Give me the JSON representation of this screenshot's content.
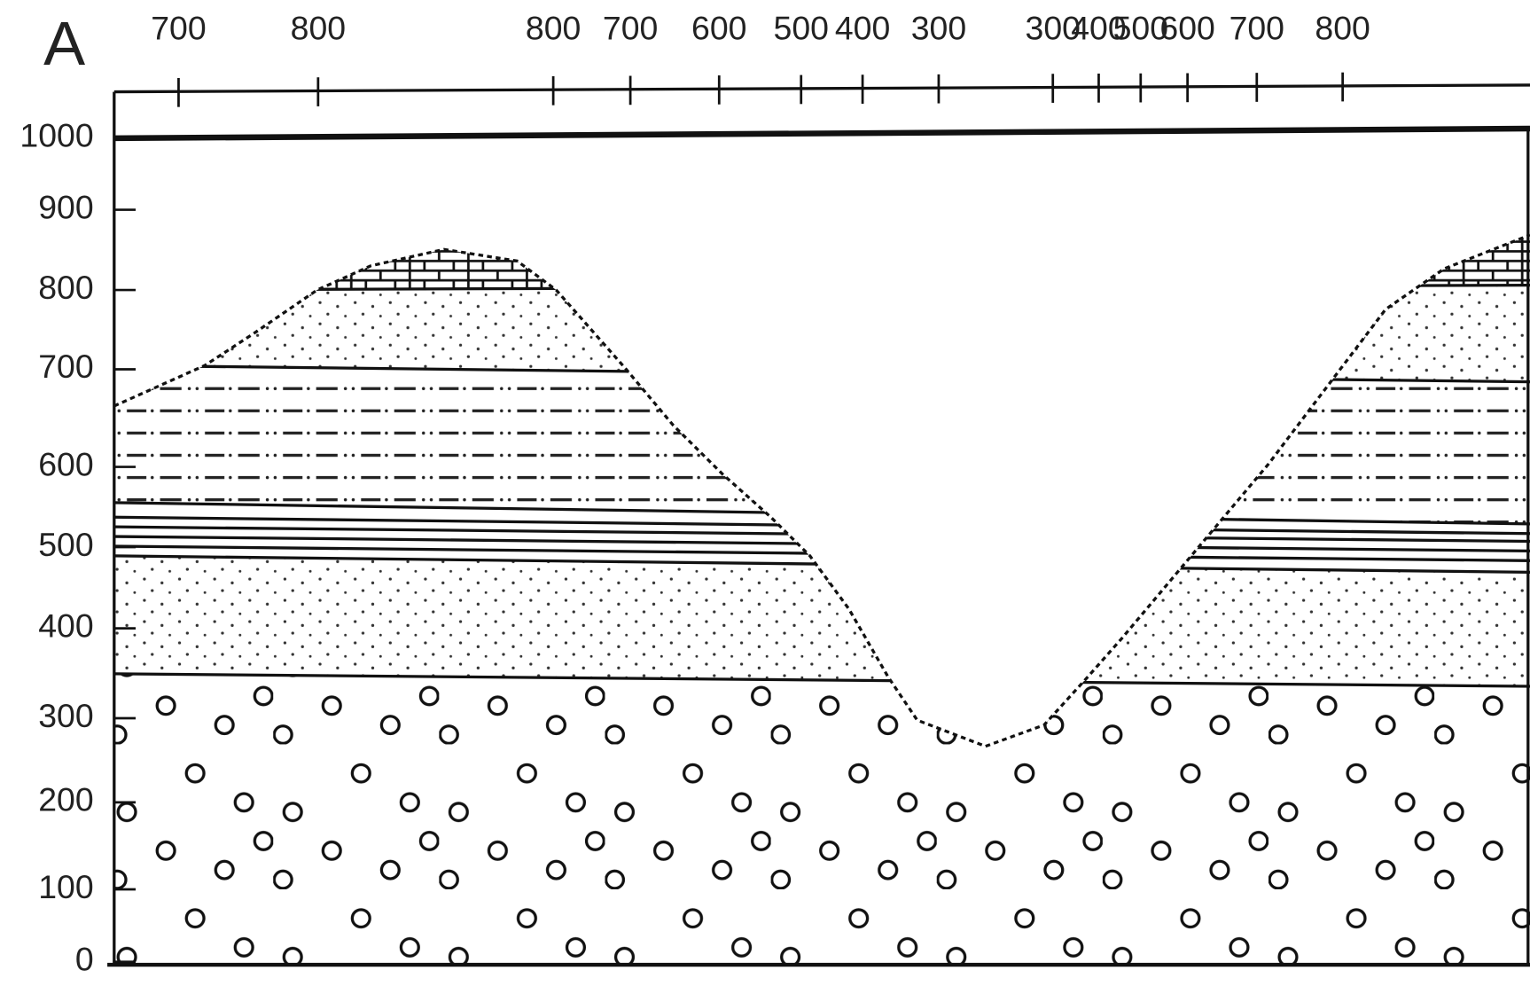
{
  "panel_label": "A",
  "top_axis": {
    "labels": [
      "700",
      "800",
      "800",
      "700",
      "600",
      "500",
      "400",
      "300",
      "300",
      "400",
      "500",
      "600",
      "700",
      "800"
    ]
  },
  "left_axis": {
    "labels": [
      "1000",
      "900",
      "800",
      "700",
      "600",
      "500",
      "400",
      "300",
      "200",
      "100",
      "0"
    ]
  }
}
